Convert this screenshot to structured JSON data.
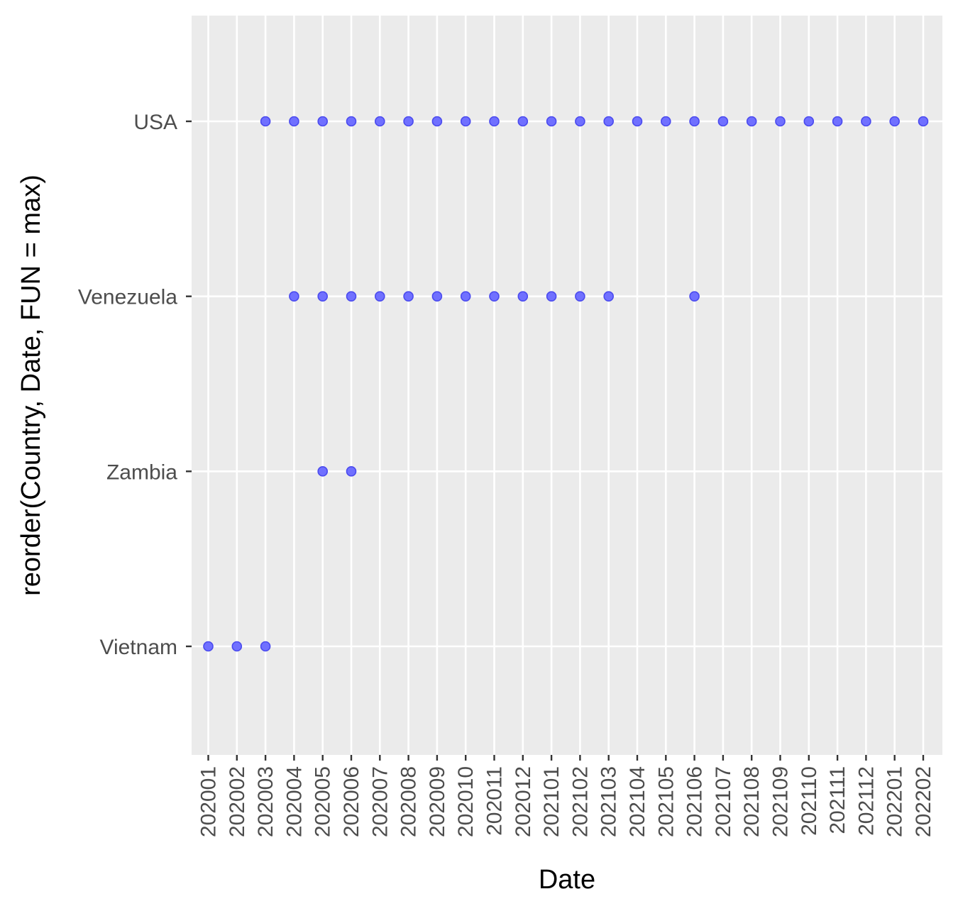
{
  "chart_data": {
    "type": "scatter",
    "xlabel": "Date",
    "ylabel": "reorder(Country, Date, FUN = max)",
    "x_categories": [
      "202001",
      "202002",
      "202003",
      "202004",
      "202005",
      "202006",
      "202007",
      "202008",
      "202009",
      "202010",
      "202011",
      "202012",
      "202101",
      "202102",
      "202103",
      "202104",
      "202105",
      "202106",
      "202107",
      "202108",
      "202109",
      "202110",
      "202111",
      "202112",
      "202201",
      "202202"
    ],
    "y_categories": [
      "Vietnam",
      "Zambia",
      "Venezuela",
      "USA"
    ],
    "points": {
      "USA": [
        "202003",
        "202004",
        "202005",
        "202006",
        "202007",
        "202008",
        "202009",
        "202010",
        "202011",
        "202012",
        "202101",
        "202102",
        "202103",
        "202104",
        "202105",
        "202106",
        "202107",
        "202108",
        "202109",
        "202110",
        "202111",
        "202112",
        "202201",
        "202202"
      ],
      "Venezuela": [
        "202004",
        "202005",
        "202006",
        "202007",
        "202008",
        "202009",
        "202010",
        "202011",
        "202012",
        "202101",
        "202102",
        "202103",
        "202106"
      ],
      "Zambia": [
        "202005",
        "202006"
      ],
      "Vietnam": [
        "202001",
        "202002",
        "202003"
      ]
    },
    "grid": true,
    "point_color": "#7070ff",
    "point_stroke": "#4a4aee",
    "panel_background": "#ebebeb",
    "grid_color": "#ffffff",
    "legend": "none"
  }
}
